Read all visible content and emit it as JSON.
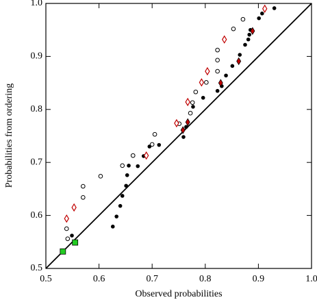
{
  "chart_data": {
    "type": "scatter",
    "xlabel": "Observed probabilities",
    "ylabel": "Probabilities from ordering",
    "xlim": [
      0.5,
      1.0
    ],
    "ylim": [
      0.5,
      1.0
    ],
    "xticks": [
      0.5,
      0.6,
      0.7,
      0.8,
      0.9,
      {
        "value": 1.0,
        "label": "1.0"
      }
    ],
    "yticks": [
      0.5,
      0.6,
      0.7,
      0.8,
      0.9,
      {
        "value": 1.0,
        "label": "1.0"
      }
    ],
    "reference_line": {
      "x": [
        0.5,
        1.0
      ],
      "y": [
        0.5,
        1.0
      ],
      "color": "#000000"
    },
    "series": [
      {
        "marker": "open-circle",
        "color": "#000000",
        "x": [
          0.541,
          0.539,
          0.57,
          0.57,
          0.603,
          0.644,
          0.664,
          0.7,
          0.705,
          0.751,
          0.772,
          0.776,
          0.782,
          0.802,
          0.823,
          0.823,
          0.823,
          0.853,
          0.871
        ],
        "values": [
          0.556,
          0.575,
          0.634,
          0.655,
          0.674,
          0.694,
          0.713,
          0.734,
          0.753,
          0.773,
          0.793,
          0.813,
          0.833,
          0.851,
          0.872,
          0.893,
          0.912,
          0.952,
          0.97
        ]
      },
      {
        "marker": "dot",
        "color": "#000000",
        "x": [
          0.549,
          0.626,
          0.633,
          0.64,
          0.644,
          0.651,
          0.653,
          0.656,
          0.673,
          0.684,
          0.695,
          0.713,
          0.759,
          0.764,
          0.777,
          0.796,
          0.823,
          0.831,
          0.839,
          0.851,
          0.865,
          0.875,
          0.881,
          0.883,
          0.885,
          0.901,
          0.907,
          0.93
        ],
        "values": [
          0.562,
          0.579,
          0.598,
          0.618,
          0.637,
          0.656,
          0.676,
          0.694,
          0.693,
          0.712,
          0.73,
          0.733,
          0.748,
          0.767,
          0.805,
          0.822,
          0.835,
          0.844,
          0.864,
          0.882,
          0.903,
          0.922,
          0.932,
          0.941,
          0.95,
          0.972,
          0.981,
          0.991
        ]
      },
      {
        "marker": "open-diamond",
        "color": "#c00000",
        "x": [
          0.539,
          0.553,
          0.689,
          0.746,
          0.767,
          0.793,
          0.804,
          0.836,
          0.912
        ],
        "values": [
          0.594,
          0.615,
          0.713,
          0.774,
          0.814,
          0.851,
          0.872,
          0.932,
          0.99
        ]
      },
      {
        "marker": "filled-diamond",
        "color": "#c00000",
        "x": [
          0.758,
          0.767,
          0.829,
          0.863,
          0.889
        ],
        "values": [
          0.761,
          0.776,
          0.85,
          0.891,
          0.948
        ]
      },
      {
        "marker": "square",
        "color": "#22cc22",
        "x": [
          0.532,
          0.555
        ],
        "values": [
          0.532,
          0.549
        ]
      }
    ]
  }
}
